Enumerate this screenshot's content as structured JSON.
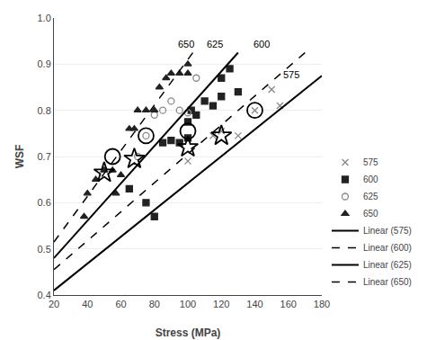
{
  "chart_data": {
    "type": "scatter",
    "xlabel": "Stress (MPa)",
    "ylabel": "WSF",
    "xlim": [
      20,
      180
    ],
    "ylim": [
      0.4,
      1.0
    ],
    "xticks": [
      20,
      40,
      60,
      80,
      100,
      120,
      140,
      160,
      180
    ],
    "yticks": [
      0.4,
      0.5,
      0.6,
      0.7,
      0.8,
      0.9,
      {
        "value": 1.0,
        "label": "1.0"
      }
    ],
    "grid": "y",
    "legend": "lower right",
    "series": [
      {
        "name": "575",
        "type": "scatter",
        "marker": "x",
        "color": "#888888",
        "x": [
          100,
          115,
          120,
          130,
          140,
          150,
          155
        ],
        "values": [
          0.69,
          0.745,
          0.755,
          0.745,
          0.8,
          0.845,
          0.81
        ]
      },
      {
        "name": "600",
        "type": "scatter",
        "marker": "square",
        "color": "#222222",
        "x": [
          65,
          75,
          80,
          85,
          90,
          95,
          100,
          100,
          102,
          105,
          110,
          115,
          120,
          120,
          125,
          130
        ],
        "values": [
          0.63,
          0.6,
          0.57,
          0.73,
          0.735,
          0.73,
          0.74,
          0.775,
          0.8,
          0.79,
          0.82,
          0.81,
          0.83,
          0.87,
          0.89,
          0.84
        ]
      },
      {
        "name": "625",
        "type": "scatter",
        "marker": "circle-open",
        "color": "#888888",
        "x": [
          70,
          75,
          80,
          85,
          90,
          95,
          100,
          105
        ],
        "values": [
          0.7,
          0.745,
          0.79,
          0.8,
          0.82,
          0.8,
          0.795,
          0.87
        ]
      },
      {
        "name": "650",
        "type": "scatter",
        "marker": "triangle-up",
        "color": "#222222",
        "x": [
          38,
          40,
          45,
          50,
          55,
          57,
          60,
          65,
          68,
          70,
          75,
          80,
          83,
          87,
          90,
          95,
          100,
          100
        ],
        "values": [
          0.57,
          0.62,
          0.65,
          0.67,
          0.67,
          0.62,
          0.66,
          0.76,
          0.76,
          0.8,
          0.8,
          0.8,
          0.85,
          0.87,
          0.88,
          0.88,
          0.88,
          0.9
        ]
      },
      {
        "type": "scatter",
        "marker": "circle-open",
        "color": "black",
        "x": [
          55,
          75,
          100,
          140
        ],
        "values": [
          0.7,
          0.745,
          0.755,
          0.8
        ]
      },
      {
        "type": "scatter",
        "marker": "star-open",
        "color": "black",
        "x": [
          50,
          68,
          100,
          120
        ],
        "values": [
          0.665,
          0.695,
          0.72,
          0.745
        ]
      },
      {
        "name": "Linear (575)",
        "type": "line",
        "line_style": "solid",
        "color": "black",
        "x": [
          20,
          180
        ],
        "values": [
          0.41,
          0.875
        ]
      },
      {
        "name": "Linear (600)",
        "type": "line",
        "line_style": "dashed",
        "color": "black",
        "x": [
          20,
          170
        ],
        "values": [
          0.455,
          0.925
        ]
      },
      {
        "name": "Linear (625)",
        "type": "line",
        "line_style": "solid",
        "color": "black",
        "x": [
          20,
          130
        ],
        "values": [
          0.48,
          0.925
        ]
      },
      {
        "name": "Linear (650)",
        "type": "line",
        "line_style": "dashed",
        "color": "black",
        "x": [
          20,
          105
        ],
        "values": [
          0.515,
          0.935
        ]
      }
    ],
    "annotations": [
      {
        "text": "650",
        "x": 93,
        "y": 0.928
      },
      {
        "text": "625",
        "x": 110,
        "y": 0.928
      },
      {
        "text": "600",
        "x": 138,
        "y": 0.928
      },
      {
        "text": "575",
        "x": 156,
        "y": 0.862
      }
    ]
  }
}
